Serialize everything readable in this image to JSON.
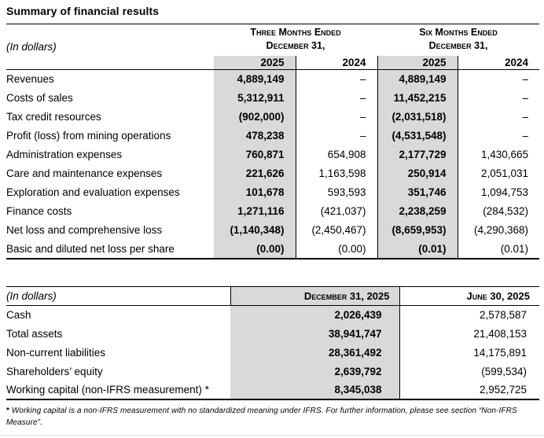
{
  "title": "Summary of financial results",
  "colors": {
    "row_shading": "#d9d9d9",
    "border": "#000000",
    "text": "#000000"
  },
  "table1": {
    "in_dollars_label": "(In dollars)",
    "group_headers": [
      {
        "line1": "Three Months Ended",
        "line2": "December 31,"
      },
      {
        "line1": "Six Months Ended",
        "line2": "December 31,"
      }
    ],
    "year_headers": [
      "2025",
      "2024",
      "2025",
      "2024"
    ],
    "rows": [
      {
        "label": "Revenues",
        "c1": "4,889,149",
        "c2": "–",
        "c3": "4,889,149",
        "c4": "–"
      },
      {
        "label": "Costs of sales",
        "c1": "5,312,911",
        "c2": "–",
        "c3": "11,452,215",
        "c4": "–"
      },
      {
        "label": "Tax credit resources",
        "c1": "(902,000)",
        "c2": "–",
        "c3": "(2,031,518)",
        "c4": "–"
      },
      {
        "label": "Profit (loss) from mining operations",
        "c1": "478,238",
        "c2": "–",
        "c3": "(4,531,548)",
        "c4": "–"
      },
      {
        "label": "Administration expenses",
        "c1": "760,871",
        "c2": "654,908",
        "c3": "2,177,729",
        "c4": "1,430,665"
      },
      {
        "label": "Care and maintenance expenses",
        "c1": "221,626",
        "c2": "1,163,598",
        "c3": "250,914",
        "c4": "2,051,031"
      },
      {
        "label": "Exploration and evaluation expenses",
        "c1": "101,678",
        "c2": "593,593",
        "c3": "351,746",
        "c4": "1,094,753"
      },
      {
        "label": "Finance costs",
        "c1": "1,271,116",
        "c2": "(421,037)",
        "c3": "2,238,259",
        "c4": "(284,532)"
      },
      {
        "label": "Net loss and comprehensive loss",
        "c1": "(1,140,348)",
        "c2": "(2,450,467)",
        "c3": "(8,659,953)",
        "c4": "(4,290,368)"
      },
      {
        "label": "Basic and diluted net loss per share",
        "c1": "(0.00)",
        "c2": "(0.00)",
        "c3": "(0.01)",
        "c4": "(0.01)"
      }
    ]
  },
  "table2": {
    "in_dollars_label": "(In dollars)",
    "col_headers": [
      "December 31, 2025",
      "June 30, 2025"
    ],
    "rows": [
      {
        "label": "Cash",
        "c1": "2,026,439",
        "c2": "2,578,587"
      },
      {
        "label": "Total assets",
        "c1": "38,941,747",
        "c2": "21,408,153"
      },
      {
        "label": "Non-current liabilities",
        "c1": "28,361,492",
        "c2": "14,175,891"
      },
      {
        "label": "Shareholders’ equity",
        "c1": "2,639,792",
        "c2": "(599,534)"
      },
      {
        "label": "Working capital (non-IFRS measurement) *",
        "c1": "8,345,038",
        "c2": "2,952,725"
      }
    ]
  },
  "footnote": {
    "marker": "*",
    "text": "Working capital is a non-IFRS measurement with no standardized meaning under IFRS. For further information, please see section “Non-IFRS Measure”."
  }
}
